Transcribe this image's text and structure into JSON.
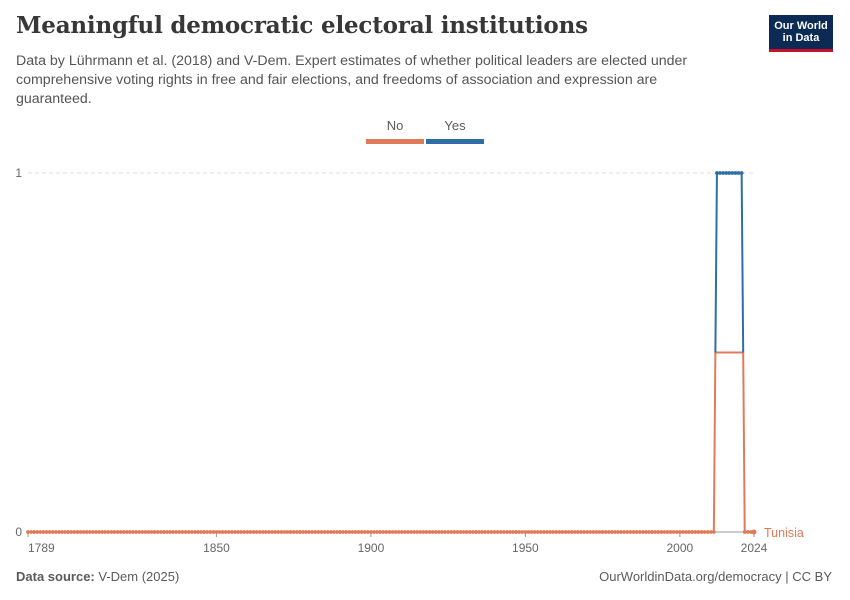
{
  "header": {
    "title": "Meaningful democratic electoral institutions",
    "subtitle": "Data by Lührmann et al. (2018) and V-Dem. Expert estimates of whether political leaders are elected under comprehensive voting rights in free and fair elections, and freedoms of association and expression are guaranteed.",
    "logo_line1": "Our World",
    "logo_line2": "in Data"
  },
  "legend": {
    "no_label": "No",
    "yes_label": "Yes"
  },
  "colors": {
    "no": "#e07b5a",
    "yes": "#2e6ea4",
    "grid": "#dddddd",
    "axis_text": "#666666"
  },
  "chart_data": {
    "type": "line",
    "title": "Meaningful democratic electoral institutions",
    "xlabel": "",
    "ylabel": "",
    "xlim": [
      1789,
      2024
    ],
    "ylim": [
      0,
      1
    ],
    "x_ticks": [
      1789,
      1850,
      1900,
      1950,
      2000,
      2024
    ],
    "y_ticks": [
      0,
      1
    ],
    "grid": true,
    "legend_position": "top-center",
    "entity_label": "Tunisia",
    "series": [
      {
        "name": "No",
        "points": [
          [
            1789,
            0
          ],
          [
            2011,
            0
          ],
          [
            2011.5,
            0.5
          ],
          [
            2020.5,
            0.5
          ],
          [
            2021,
            0
          ],
          [
            2024,
            0
          ]
        ]
      },
      {
        "name": "Yes",
        "points": [
          [
            2011.5,
            0.5
          ],
          [
            2012,
            1
          ],
          [
            2020,
            1
          ],
          [
            2020.5,
            0.5
          ]
        ]
      }
    ]
  },
  "footer": {
    "source_label": "Data source:",
    "source_value": "V-Dem (2025)",
    "right_text": "OurWorldinData.org/democracy | CC BY"
  }
}
